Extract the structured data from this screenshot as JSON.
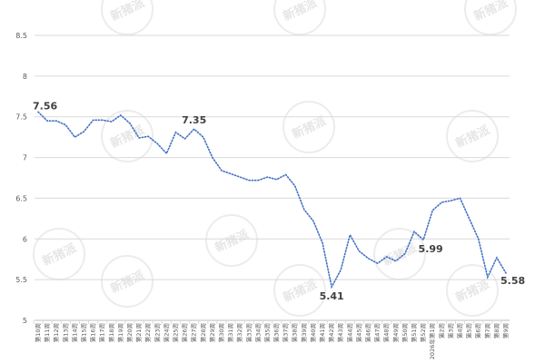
{
  "chart_data": {
    "type": "line",
    "title": "",
    "xlabel": "",
    "ylabel": "",
    "ylim": [
      5,
      8.5
    ],
    "yticks": [
      "5",
      "5.5",
      "6",
      "6.5",
      "7",
      "7.5",
      "8",
      "8.5"
    ],
    "grid": "horizontal",
    "line_color": "#4472c4",
    "line_style": "dotted",
    "watermark": "新猪派",
    "categories": [
      "第10周",
      "第11周",
      "第12周",
      "第13周",
      "第14周",
      "第15周",
      "第16周",
      "第17周",
      "第18周",
      "第19周",
      "第20周",
      "第21周",
      "第22周",
      "第23周",
      "第24周",
      "第25周",
      "第26周",
      "第27周",
      "第28周",
      "第29周",
      "第30周",
      "第31周",
      "第32周",
      "第33周",
      "第34周",
      "第35周",
      "第36周",
      "第37周",
      "第38周",
      "第39周",
      "第40周",
      "第41周",
      "第42周",
      "第43周",
      "第44周",
      "第45周",
      "第46周",
      "第47周",
      "第48周",
      "第49周",
      "第50周",
      "第51周",
      "第52周",
      "2026年第1周",
      "第2周",
      "第3周",
      "第4周",
      "第5周",
      "第6周",
      "第7周",
      "第8周",
      "第9周"
    ],
    "values": [
      7.56,
      7.45,
      7.45,
      7.4,
      7.25,
      7.32,
      7.46,
      7.46,
      7.44,
      7.52,
      7.42,
      7.24,
      7.26,
      7.17,
      7.05,
      7.31,
      7.23,
      7.35,
      7.25,
      7.0,
      6.84,
      6.8,
      6.76,
      6.72,
      6.72,
      6.76,
      6.73,
      6.79,
      6.65,
      6.36,
      6.22,
      5.95,
      5.41,
      5.62,
      6.05,
      5.85,
      5.76,
      5.7,
      5.78,
      5.73,
      5.82,
      6.09,
      5.99,
      6.35,
      6.45,
      6.47,
      6.5,
      6.25,
      6.0,
      5.53,
      5.77,
      5.58
    ],
    "data_labels": [
      {
        "index": 0,
        "text": "7.56"
      },
      {
        "index": 17,
        "text": "7.35"
      },
      {
        "index": 32,
        "text": "5.41"
      },
      {
        "index": 42,
        "text": "5.99"
      },
      {
        "index": 51,
        "text": "5.58"
      }
    ]
  }
}
